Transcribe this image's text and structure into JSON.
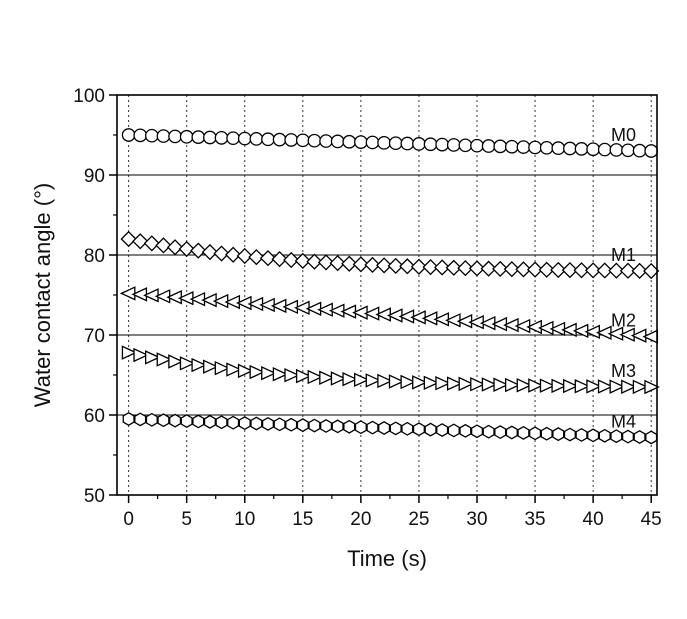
{
  "chart_data": {
    "type": "scatter",
    "title": "",
    "xlabel": "Time (s)",
    "ylabel": "Water contact angle (°)",
    "xlim": [
      -1,
      45.5
    ],
    "ylim": [
      50,
      100
    ],
    "xticks": [
      0,
      5,
      10,
      15,
      20,
      25,
      30,
      35,
      40,
      45
    ],
    "yticks": [
      50,
      60,
      70,
      80,
      90,
      100
    ],
    "grid": {
      "vertical": "dotted",
      "horizontal": "solid-at-major-ticks"
    },
    "series": [
      {
        "name": "M0",
        "marker": "circle",
        "start": 95.0,
        "end": 93.0,
        "shape": "linear"
      },
      {
        "name": "M1",
        "marker": "diamond",
        "start": 82.0,
        "end": 78.0,
        "shape": "decay"
      },
      {
        "name": "M2",
        "marker": "triangle-left",
        "start": 75.2,
        "end": 69.8,
        "shape": "linear"
      },
      {
        "name": "M3",
        "marker": "triangle-right",
        "start": 67.8,
        "end": 63.5,
        "shape": "decay"
      },
      {
        "name": "M4",
        "marker": "hexagon",
        "start": 59.5,
        "end": 57.2,
        "shape": "linear"
      }
    ],
    "x_points": {
      "start": 0,
      "step": 1,
      "end": 45
    }
  }
}
